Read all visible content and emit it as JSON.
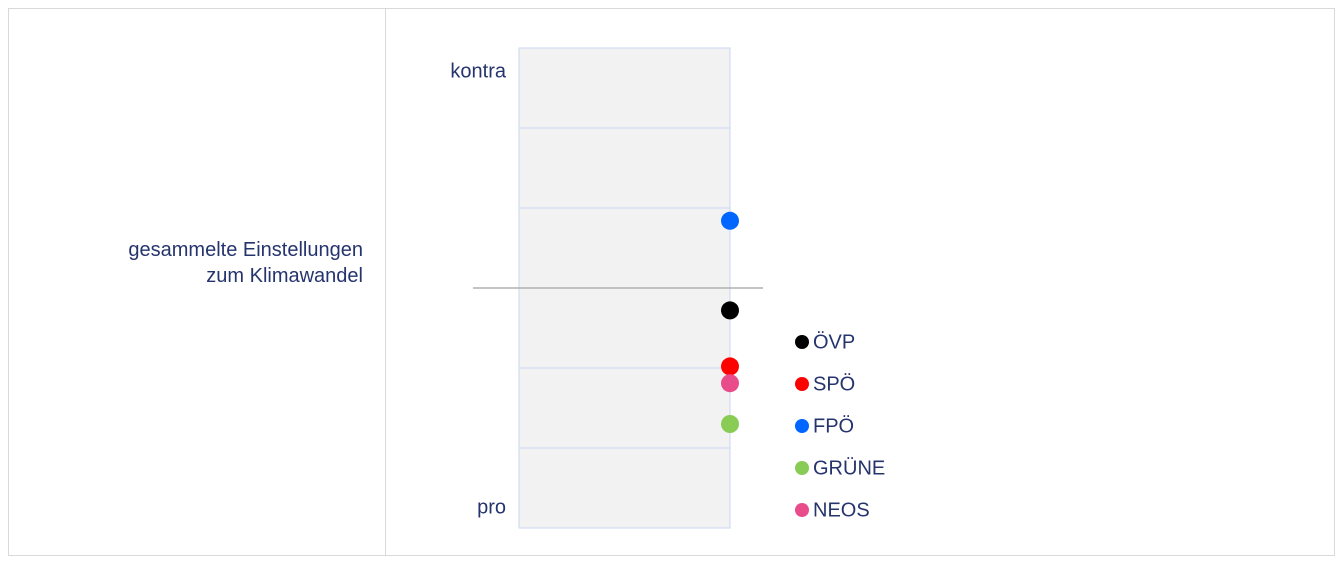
{
  "chart_data": {
    "type": "dot",
    "categories": [
      "gesammelte Einstellungen zum Klimawandel"
    ],
    "top_label": "kontra",
    "bottom_label": "pro",
    "ylim": [
      -3,
      3
    ],
    "yticks": [
      -3,
      -2,
      -1,
      0,
      1,
      2,
      3
    ],
    "series": [
      {
        "name": "ÖVP",
        "color": "#000000",
        "values": [
          -0.28
        ]
      },
      {
        "name": "SPÖ",
        "color": "#ff0000",
        "values": [
          -0.98
        ]
      },
      {
        "name": "FPÖ",
        "color": "#0066ff",
        "values": [
          0.84
        ]
      },
      {
        "name": "GRÜNE",
        "color": "#88cc55",
        "values": [
          -1.7
        ]
      },
      {
        "name": "NEOS",
        "color": "#e84c8b",
        "values": [
          -1.19
        ]
      }
    ]
  }
}
